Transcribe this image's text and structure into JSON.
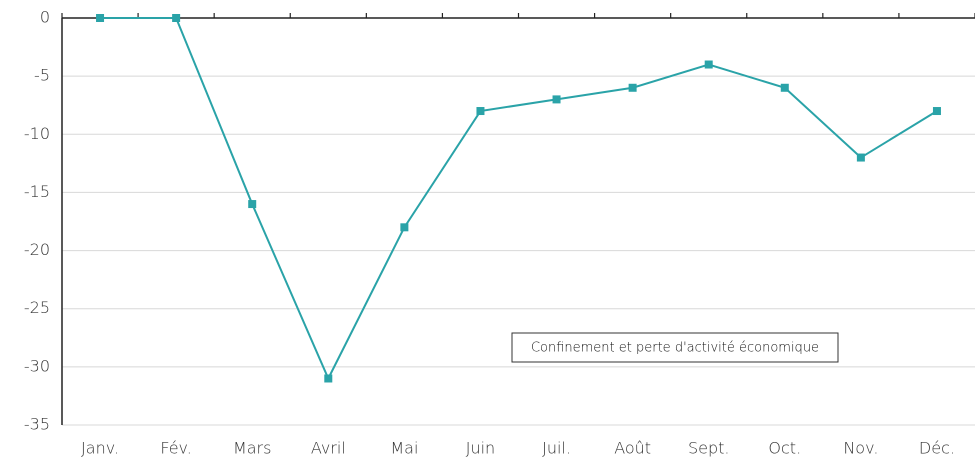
{
  "chart_data": {
    "type": "line",
    "categories": [
      "Janv.",
      "Fév.",
      "Mars",
      "Avril",
      "Mai",
      "Juin",
      "Juil.",
      "Août",
      "Sept.",
      "Oct.",
      "Nov.",
      "Déc."
    ],
    "values": [
      0,
      0,
      -16,
      -31,
      -18,
      -8,
      -7,
      -6,
      -4,
      -6,
      -12,
      -8
    ],
    "color": "#2aa3a8",
    "ylim": [
      -35,
      0
    ],
    "yticks": [
      0,
      -5,
      -10,
      -15,
      -20,
      -25,
      -30,
      -35
    ],
    "grid": true,
    "annotation": "Confinement et perte d'activité économique"
  }
}
